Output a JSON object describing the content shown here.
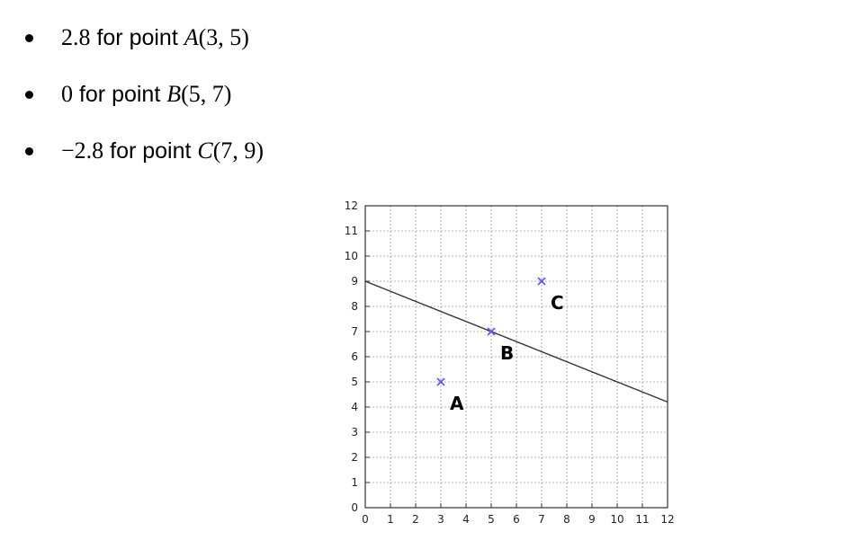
{
  "bullets": [
    {
      "value": "2.8",
      "text": " for point ",
      "point": "A",
      "coords": "(3, 5)"
    },
    {
      "value": "0",
      "text": " for point ",
      "point": "B",
      "coords": "(5, 7)"
    },
    {
      "value": "−2.8",
      "text": " for point ",
      "point": "C",
      "coords": "(7, 9)"
    }
  ],
  "chart_data": {
    "type": "scatter",
    "xlim": [
      0,
      12
    ],
    "ylim": [
      0,
      12
    ],
    "x_ticks": [
      "0",
      "1",
      "2",
      "3",
      "4",
      "5",
      "6",
      "7",
      "8",
      "9",
      "10",
      "11",
      "12"
    ],
    "y_ticks": [
      "0",
      "1",
      "2",
      "3",
      "4",
      "5",
      "6",
      "7",
      "8",
      "9",
      "10",
      "11",
      "12"
    ],
    "grid": true,
    "line": {
      "points": [
        [
          0,
          9
        ],
        [
          12,
          4.2
        ]
      ],
      "color": "#333333"
    },
    "points": [
      {
        "label": "A",
        "x": 3,
        "y": 5
      },
      {
        "label": "B",
        "x": 5,
        "y": 7
      },
      {
        "label": "C",
        "x": 7,
        "y": 9
      }
    ],
    "marker_color": "#5555ff",
    "marker": "x"
  }
}
